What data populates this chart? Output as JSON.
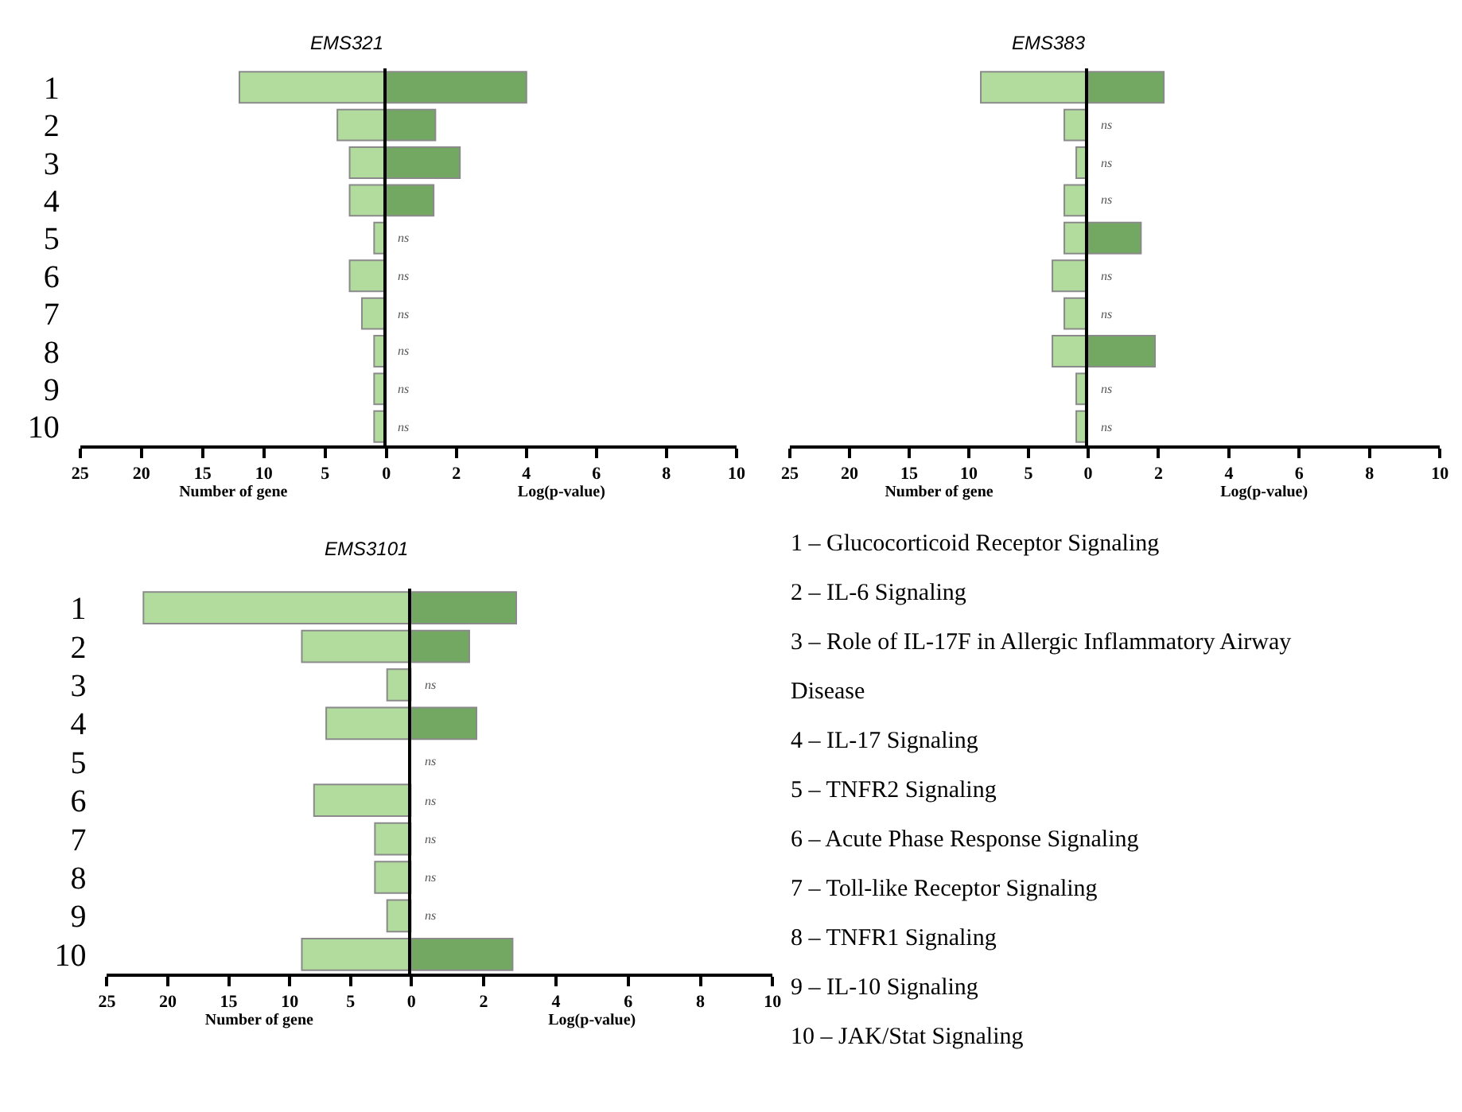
{
  "chart_data": [
    {
      "type": "bar",
      "orientation": "horizontal",
      "title": "EMS321",
      "xlabel": "Number of gene",
      "categories": [
        "1",
        "2",
        "3",
        "4",
        "5",
        "6",
        "7",
        "8",
        "9",
        "10"
      ],
      "values": [
        12,
        4,
        3,
        3,
        1,
        3,
        2,
        1,
        1,
        1
      ],
      "color": "#b2dc9e",
      "xlim": [
        25,
        0
      ],
      "xticks": [
        25,
        20,
        15,
        10,
        5,
        0
      ]
    },
    {
      "type": "bar",
      "orientation": "horizontal",
      "xlabel": "Log(p-value)",
      "categories": [
        "1",
        "2",
        "3",
        "4",
        "5",
        "6",
        "7",
        "8",
        "9",
        "10"
      ],
      "values": [
        4.0,
        1.4,
        2.1,
        1.35,
        null,
        null,
        null,
        null,
        null,
        null
      ],
      "color": "#72a862",
      "xlim": [
        0,
        10
      ],
      "xticks": [
        2,
        4,
        6,
        8,
        10
      ],
      "tick_labels": "x",
      "annotations": [
        "ns",
        "ns",
        "ns",
        "ns",
        "ns",
        "ns"
      ]
    },
    {
      "type": "bar",
      "orientation": "horizontal",
      "title": "EMS383",
      "xlabel": "Number of gene",
      "categories": [
        "1",
        "2",
        "3",
        "4",
        "5",
        "6",
        "7",
        "8",
        "9",
        "10"
      ],
      "values": [
        9,
        2,
        1,
        2,
        2,
        3,
        2,
        3,
        1,
        1
      ],
      "color": "#b2dc9e",
      "xlim": [
        25,
        0
      ],
      "xticks": [
        25,
        20,
        15,
        10,
        5,
        0
      ],
      "tick_labels": "x"
    },
    {
      "type": "bar",
      "orientation": "horizontal",
      "xlabel": "Log(p-value)",
      "categories": [
        "1",
        "2",
        "3",
        "4",
        "5",
        "6",
        "7",
        "8",
        "9",
        "10"
      ],
      "values": [
        2.15,
        null,
        null,
        null,
        1.5,
        null,
        null,
        1.9,
        null,
        null
      ],
      "color": "#72a862",
      "xlim": [
        0,
        10
      ],
      "xticks": [
        2,
        4,
        6,
        8,
        10
      ],
      "tick_labels": "x",
      "annotations": [
        "ns",
        "ns",
        "ns",
        "ns",
        "ns",
        "ns",
        "ns"
      ]
    },
    {
      "type": "bar",
      "orientation": "horizontal",
      "title": "EMS3101",
      "xlabel": "Number of gene",
      "categories": [
        "1",
        "2",
        "3",
        "4",
        "5",
        "6",
        "7",
        "8",
        "9",
        "10"
      ],
      "values": [
        22,
        9,
        2,
        7,
        null,
        8,
        3,
        3,
        2,
        9
      ],
      "color": "#b2dc9e",
      "xlim": [
        25,
        0
      ],
      "xticks": [
        25,
        20,
        15,
        10,
        5,
        0
      ]
    },
    {
      "type": "bar",
      "orientation": "horizontal",
      "xlabel": "Log(p-value)",
      "categories": [
        "1",
        "2",
        "3",
        "4",
        "5",
        "6",
        "7",
        "8",
        "9",
        "10"
      ],
      "values": [
        2.9,
        1.6,
        null,
        1.8,
        null,
        null,
        null,
        null,
        null,
        2.8
      ],
      "color": "#72a862",
      "xlim": [
        0,
        10
      ],
      "xticks": [
        2,
        4,
        6,
        8,
        10
      ],
      "tick_labels": "x",
      "annotations": [
        "ns",
        "ns",
        "ns",
        "ns",
        "ns",
        "ns"
      ]
    },
    {
      "type": "other",
      "annotations": [
        "1 – Glucocorticoid Receptor Signaling",
        "2 – IL-6 Signaling",
        "3 – Role of IL-17F in Allergic Inflammatory Airway Disease",
        "4 – IL-17 Signaling",
        "5 – TNFR2 Signaling",
        "6 – Acute Phase Response Signaling",
        "7 – Toll-like Receptor Signaling",
        "8 – TNFR1 Signaling",
        "9 – IL-10 Signaling",
        "10 – JAK/Stat Signaling"
      ]
    }
  ]
}
